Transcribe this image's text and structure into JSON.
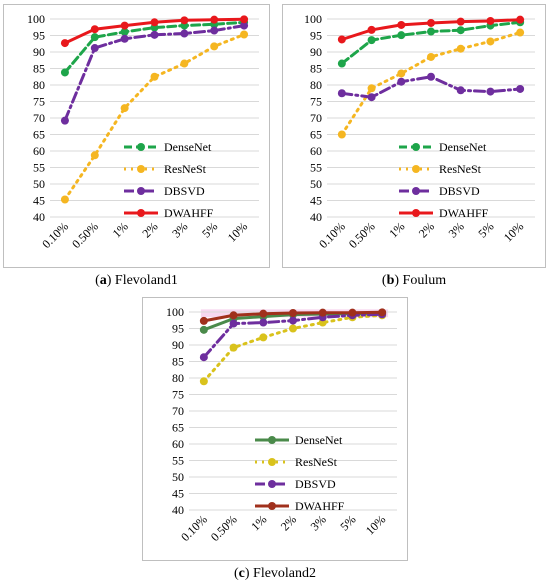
{
  "chart_data": [
    {
      "type": "line",
      "panel_letter": "a",
      "caption_name": "Flevoland1",
      "categories": [
        "0.10%",
        "0.50%",
        "1%",
        "2%",
        "3%",
        "5%",
        "10%"
      ],
      "ylim": [
        40,
        100
      ],
      "yticks": [
        40,
        45,
        50,
        55,
        60,
        65,
        70,
        75,
        80,
        85,
        90,
        95,
        100
      ],
      "legend_position": "right",
      "series": [
        {
          "name": "DenseNet",
          "color": "#1ea54a",
          "dash": "8,4",
          "values": [
            83.8,
            94.5,
            96.1,
            97.4,
            98.0,
            98.4,
            99.0
          ]
        },
        {
          "name": "ResNeSt",
          "color": "#f5b621",
          "dash": "2,5",
          "values": [
            45.3,
            58.7,
            73.0,
            82.5,
            86.5,
            91.7,
            95.3
          ]
        },
        {
          "name": "DBSVD",
          "color": "#6e2e9e",
          "dash": "10,4,2,4",
          "values": [
            69.2,
            91.2,
            94.0,
            95.2,
            95.6,
            96.5,
            98.0
          ]
        },
        {
          "name": "DWAHFF",
          "color": "#e8181c",
          "dash": "",
          "values": [
            92.7,
            96.9,
            98.0,
            99.0,
            99.6,
            99.8,
            99.9
          ]
        }
      ]
    },
    {
      "type": "line",
      "panel_letter": "b",
      "caption_name": "Foulum",
      "categories": [
        "0.10%",
        "0.50%",
        "1%",
        "2%",
        "3%",
        "5%",
        "10%"
      ],
      "ylim": [
        40,
        100
      ],
      "yticks": [
        40,
        45,
        50,
        55,
        60,
        65,
        70,
        75,
        80,
        85,
        90,
        95,
        100
      ],
      "legend_position": "right",
      "series": [
        {
          "name": "DenseNet",
          "color": "#1ea54a",
          "dash": "8,4",
          "values": [
            86.5,
            93.6,
            95.1,
            96.2,
            96.6,
            98.0,
            99.0
          ]
        },
        {
          "name": "ResNeSt",
          "color": "#f5b621",
          "dash": "2,5",
          "values": [
            65.0,
            79.0,
            83.5,
            88.5,
            91.0,
            93.2,
            95.9
          ]
        },
        {
          "name": "DBSVD",
          "color": "#6e2e9e",
          "dash": "10,4,2,4",
          "values": [
            77.5,
            76.3,
            81.0,
            82.5,
            78.4,
            78.0,
            78.8
          ]
        },
        {
          "name": "DWAHFF",
          "color": "#e8181c",
          "dash": "",
          "values": [
            93.8,
            96.7,
            98.2,
            98.8,
            99.2,
            99.4,
            99.8
          ]
        }
      ]
    },
    {
      "type": "line",
      "panel_letter": "c",
      "caption_name": "Flevoland2",
      "categories": [
        "0.10%",
        "0.50%",
        "1%",
        "2%",
        "3%",
        "5%",
        "10%"
      ],
      "ylim": [
        40,
        100
      ],
      "yticks": [
        40,
        45,
        50,
        55,
        60,
        65,
        70,
        75,
        80,
        85,
        90,
        95,
        100
      ],
      "legend_position": "center",
      "series": [
        {
          "name": "DenseNet",
          "color": "#4a8a4a",
          "dash": "",
          "values": [
            94.6,
            98.0,
            98.6,
            99.2,
            99.4,
            99.5,
            99.6
          ]
        },
        {
          "name": "ResNeSt",
          "color": "#d9c21c",
          "dash": "2,5",
          "values": [
            79.0,
            89.2,
            92.3,
            95.0,
            96.8,
            98.4,
            99.0
          ]
        },
        {
          "name": "DBSVD",
          "color": "#6e2e9e",
          "dash": "10,4,2,4",
          "values": [
            86.3,
            96.5,
            96.8,
            97.4,
            98.4,
            99.0,
            99.3
          ]
        },
        {
          "name": "DWAHFF",
          "color": "#a0301c",
          "dash": "",
          "values": [
            97.3,
            99.0,
            99.5,
            99.7,
            99.8,
            99.8,
            99.9
          ]
        }
      ]
    }
  ]
}
